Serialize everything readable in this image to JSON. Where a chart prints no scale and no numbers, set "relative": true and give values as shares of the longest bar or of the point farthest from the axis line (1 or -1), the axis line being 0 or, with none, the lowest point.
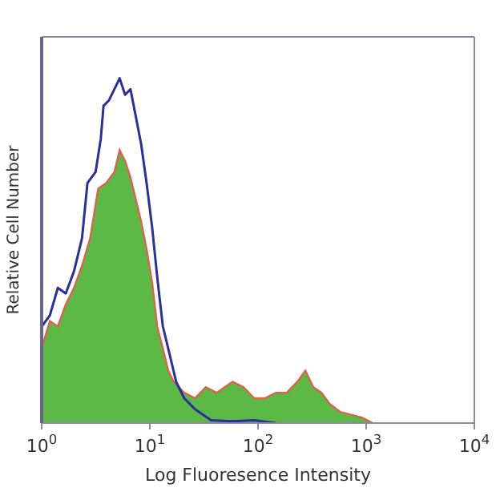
{
  "chart_data": {
    "type": "area",
    "relative": true,
    "xlabel": "Log Fluoresence Intensity",
    "ylabel": "Relative Cell Number",
    "log": "x",
    "xlim": [
      1,
      10000
    ],
    "xticks": [
      {
        "value": 1,
        "label": "10$^{0}$"
      },
      {
        "value": 10,
        "label": "10$^{1}$"
      },
      {
        "value": 100,
        "label": "10$^{2}$"
      },
      {
        "value": 1000,
        "label": "10$^{3}$"
      },
      {
        "value": 10000,
        "label": "10$^{4}$"
      }
    ],
    "series": [
      {
        "color": "#5cb946",
        "x": [
          1,
          1.19,
          1.41,
          1.67,
          1.99,
          2.36,
          2.81,
          3.33,
          3.95,
          4.7,
          5.26,
          5.9,
          6.62,
          7.43,
          8.32,
          9.33,
          10.5,
          11.7,
          13.2,
          14.8,
          16.6,
          20.8,
          26.2,
          32.9,
          41.4,
          58.3,
          73.5,
          92.3,
          116,
          146,
          184,
          231,
          274,
          325,
          386,
          459,
          577,
          726,
          912,
          1150
        ],
        "values": [
          0.216,
          0.296,
          0.28,
          0.344,
          0.392,
          0.456,
          0.536,
          0.68,
          0.696,
          0.728,
          0.792,
          0.76,
          0.712,
          0.648,
          0.584,
          0.504,
          0.408,
          0.28,
          0.216,
          0.152,
          0.12,
          0.088,
          0.072,
          0.104,
          0.088,
          0.12,
          0.104,
          0.072,
          0.072,
          0.088,
          0.088,
          0.12,
          0.152,
          0.104,
          0.088,
          0.056,
          0.032,
          0.024,
          0.016,
          0
        ]
      },
      {
        "type": "line",
        "color": "#2b2e9e",
        "x": [
          1,
          1.19,
          1.41,
          1.67,
          1.99,
          2.36,
          2.65,
          3.15,
          3.52,
          3.73,
          4.19,
          4.7,
          5.26,
          5.9,
          6.62,
          7.43,
          8.32,
          9.33,
          10.5,
          11.7,
          13.2,
          14.8,
          17.5,
          20.8,
          26.2,
          36.9,
          58.3,
          92.3,
          146
        ],
        "values": [
          0.28,
          0.312,
          0.392,
          0.376,
          0.44,
          0.536,
          0.696,
          0.728,
          0.824,
          0.92,
          0.936,
          0.968,
          1,
          0.952,
          0.968,
          0.888,
          0.808,
          0.696,
          0.568,
          0.424,
          0.28,
          0.216,
          0.12,
          0.072,
          0.04,
          0.008,
          0.005,
          0.008,
          0
        ]
      }
    ]
  }
}
